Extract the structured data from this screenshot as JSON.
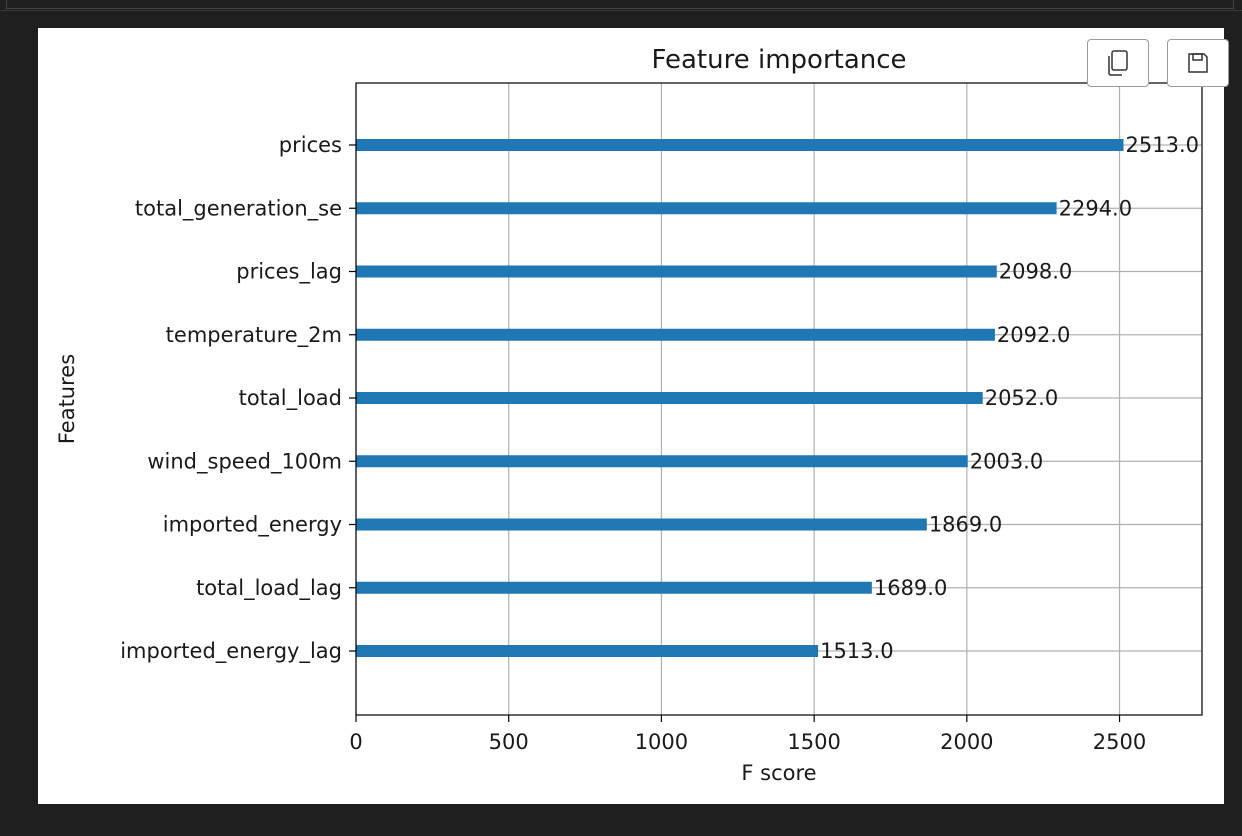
{
  "toolbar": {
    "copy_icon": "copy-icon",
    "save_icon": "save-icon"
  },
  "colors": {
    "bar": "#1f77b4",
    "background": "#1f1f1f",
    "panel": "#ffffff",
    "grid": "#b0b0b0"
  },
  "chart_data": {
    "type": "bar",
    "orientation": "horizontal",
    "title": "Feature importance",
    "xlabel": "F score",
    "ylabel": "Features",
    "categories": [
      "prices",
      "total_generation_se",
      "prices_lag",
      "temperature_2m",
      "total_load",
      "wind_speed_100m",
      "imported_energy",
      "total_load_lag",
      "imported_energy_lag"
    ],
    "values": [
      2513.0,
      2294.0,
      2098.0,
      2092.0,
      2052.0,
      2003.0,
      1869.0,
      1689.0,
      1513.0
    ],
    "value_labels": [
      "2513.0",
      "2294.0",
      "2098.0",
      "2092.0",
      "2052.0",
      "2003.0",
      "1869.0",
      "1689.0",
      "1513.0"
    ],
    "xticks": [
      0,
      500,
      1000,
      1500,
      2000,
      2500
    ],
    "xtick_labels": [
      "0",
      "500",
      "1000",
      "1500",
      "2000",
      "2500"
    ],
    "xlim": [
      0,
      2770
    ],
    "grid": true
  }
}
